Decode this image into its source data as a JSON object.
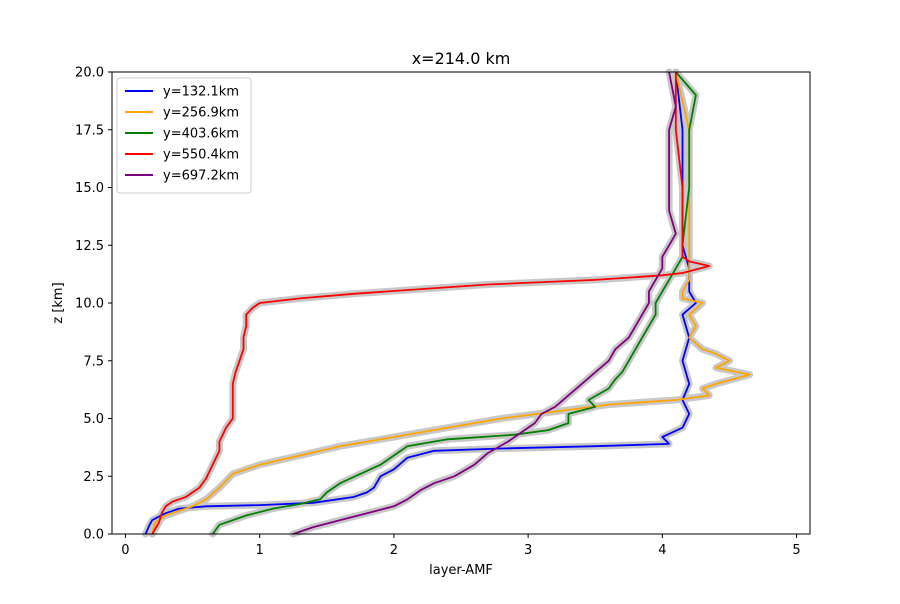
{
  "chart_data": {
    "type": "line",
    "title": "x=214.0 km",
    "xlabel": "layer-AMF",
    "ylabel": "z [km]",
    "xlim": [
      -0.1,
      5.1
    ],
    "ylim": [
      0,
      20
    ],
    "xticks": [
      0,
      1,
      2,
      3,
      4,
      5
    ],
    "xtick_labels": [
      "0",
      "1",
      "2",
      "3",
      "4",
      "5"
    ],
    "yticks": [
      0,
      2.5,
      5,
      7.5,
      10,
      12.5,
      15,
      17.5,
      20
    ],
    "ytick_labels": [
      "0.0",
      "2.5",
      "5.0",
      "7.5",
      "10.0",
      "12.5",
      "15.0",
      "17.5",
      "20.0"
    ],
    "grid": false,
    "legend_position": "upper-left",
    "uncertainty_band_color": "#c8c8c8",
    "series": [
      {
        "name": "y=132.1km",
        "color": "#0000ff",
        "points": [
          [
            0.15,
            0
          ],
          [
            0.18,
            0.4
          ],
          [
            0.2,
            0.6
          ],
          [
            0.3,
            0.9
          ],
          [
            0.4,
            1.1
          ],
          [
            0.6,
            1.2
          ],
          [
            1.0,
            1.25
          ],
          [
            1.4,
            1.35
          ],
          [
            1.7,
            1.6
          ],
          [
            1.8,
            1.8
          ],
          [
            1.85,
            2.0
          ],
          [
            1.9,
            2.5
          ],
          [
            2.0,
            2.8
          ],
          [
            2.1,
            3.3
          ],
          [
            2.3,
            3.6
          ],
          [
            2.8,
            3.7
          ],
          [
            3.5,
            3.8
          ],
          [
            4.05,
            3.9
          ],
          [
            4.0,
            4.2
          ],
          [
            4.15,
            4.6
          ],
          [
            4.2,
            5.2
          ],
          [
            4.15,
            5.8
          ],
          [
            4.2,
            6.5
          ],
          [
            4.15,
            7.5
          ],
          [
            4.2,
            8.5
          ],
          [
            4.15,
            9.5
          ],
          [
            4.25,
            10.0
          ],
          [
            4.2,
            10.5
          ],
          [
            4.2,
            11.5
          ],
          [
            4.15,
            12.5
          ],
          [
            4.15,
            15.0
          ],
          [
            4.15,
            17.5
          ],
          [
            4.1,
            20.0
          ]
        ]
      },
      {
        "name": "y=256.9km",
        "color": "#ffa500",
        "points": [
          [
            0.2,
            0
          ],
          [
            0.22,
            0.5
          ],
          [
            0.3,
            0.8
          ],
          [
            0.5,
            1.2
          ],
          [
            0.6,
            1.5
          ],
          [
            0.7,
            2.0
          ],
          [
            0.8,
            2.6
          ],
          [
            1.0,
            3.0
          ],
          [
            1.3,
            3.4
          ],
          [
            1.6,
            3.8
          ],
          [
            2.0,
            4.2
          ],
          [
            2.4,
            4.6
          ],
          [
            2.8,
            5.0
          ],
          [
            3.2,
            5.3
          ],
          [
            3.6,
            5.6
          ],
          [
            4.1,
            5.8
          ],
          [
            4.35,
            6.0
          ],
          [
            4.3,
            6.3
          ],
          [
            4.4,
            6.5
          ],
          [
            4.65,
            6.9
          ],
          [
            4.4,
            7.2
          ],
          [
            4.5,
            7.5
          ],
          [
            4.4,
            7.8
          ],
          [
            4.3,
            8.0
          ],
          [
            4.2,
            8.5
          ],
          [
            4.25,
            9.0
          ],
          [
            4.2,
            9.5
          ],
          [
            4.3,
            10.0
          ],
          [
            4.15,
            10.2
          ],
          [
            4.15,
            10.5
          ],
          [
            4.2,
            11.0
          ],
          [
            4.2,
            12.5
          ],
          [
            4.2,
            15.0
          ],
          [
            4.2,
            17.5
          ],
          [
            4.1,
            20.0
          ]
        ]
      },
      {
        "name": "y=403.6km",
        "color": "#008000",
        "points": [
          [
            0.65,
            0
          ],
          [
            0.7,
            0.4
          ],
          [
            0.9,
            0.8
          ],
          [
            1.1,
            1.1
          ],
          [
            1.3,
            1.3
          ],
          [
            1.45,
            1.5
          ],
          [
            1.5,
            1.8
          ],
          [
            1.6,
            2.2
          ],
          [
            1.75,
            2.6
          ],
          [
            1.9,
            3.0
          ],
          [
            2.0,
            3.4
          ],
          [
            2.1,
            3.8
          ],
          [
            2.4,
            4.1
          ],
          [
            2.9,
            4.3
          ],
          [
            3.15,
            4.5
          ],
          [
            3.3,
            4.8
          ],
          [
            3.3,
            5.2
          ],
          [
            3.5,
            5.5
          ],
          [
            3.45,
            5.8
          ],
          [
            3.6,
            6.3
          ],
          [
            3.65,
            6.7
          ],
          [
            3.7,
            7.0
          ],
          [
            3.75,
            7.5
          ],
          [
            3.8,
            8.0
          ],
          [
            3.85,
            8.5
          ],
          [
            3.9,
            9.0
          ],
          [
            3.95,
            9.5
          ],
          [
            3.95,
            10.0
          ],
          [
            4.0,
            10.5
          ],
          [
            4.05,
            11.0
          ],
          [
            4.1,
            11.5
          ],
          [
            4.15,
            12.0
          ],
          [
            4.15,
            12.5
          ],
          [
            4.2,
            15.0
          ],
          [
            4.2,
            17.5
          ],
          [
            4.25,
            19.0
          ],
          [
            4.1,
            20.0
          ]
        ]
      },
      {
        "name": "y=550.4km",
        "color": "#ff0000",
        "points": [
          [
            0.2,
            0
          ],
          [
            0.25,
            0.5
          ],
          [
            0.27,
            0.9
          ],
          [
            0.3,
            1.2
          ],
          [
            0.35,
            1.4
          ],
          [
            0.45,
            1.6
          ],
          [
            0.5,
            1.8
          ],
          [
            0.55,
            2.0
          ],
          [
            0.6,
            2.4
          ],
          [
            0.65,
            3.0
          ],
          [
            0.7,
            3.6
          ],
          [
            0.7,
            4.0
          ],
          [
            0.75,
            4.6
          ],
          [
            0.8,
            5.0
          ],
          [
            0.8,
            5.5
          ],
          [
            0.8,
            6.0
          ],
          [
            0.8,
            6.5
          ],
          [
            0.82,
            7.0
          ],
          [
            0.85,
            7.5
          ],
          [
            0.88,
            8.0
          ],
          [
            0.88,
            8.5
          ],
          [
            0.9,
            9.0
          ],
          [
            0.9,
            9.5
          ],
          [
            0.95,
            9.8
          ],
          [
            1.0,
            10.0
          ],
          [
            1.3,
            10.2
          ],
          [
            1.7,
            10.4
          ],
          [
            2.2,
            10.6
          ],
          [
            2.7,
            10.8
          ],
          [
            3.5,
            11.0
          ],
          [
            4.0,
            11.2
          ],
          [
            4.15,
            11.3
          ],
          [
            4.35,
            11.6
          ],
          [
            4.2,
            11.8
          ],
          [
            4.15,
            12.0
          ],
          [
            4.15,
            12.5
          ],
          [
            4.15,
            15.0
          ],
          [
            4.1,
            17.5
          ],
          [
            4.1,
            20.0
          ]
        ]
      },
      {
        "name": "y=697.2km",
        "color": "#800080",
        "points": [
          [
            1.25,
            0
          ],
          [
            1.4,
            0.3
          ],
          [
            1.6,
            0.6
          ],
          [
            1.8,
            0.9
          ],
          [
            2.0,
            1.2
          ],
          [
            2.1,
            1.5
          ],
          [
            2.2,
            1.9
          ],
          [
            2.3,
            2.2
          ],
          [
            2.45,
            2.5
          ],
          [
            2.6,
            3.0
          ],
          [
            2.7,
            3.5
          ],
          [
            2.85,
            4.0
          ],
          [
            2.95,
            4.4
          ],
          [
            3.05,
            4.8
          ],
          [
            3.1,
            5.2
          ],
          [
            3.2,
            5.5
          ],
          [
            3.3,
            6.0
          ],
          [
            3.4,
            6.5
          ],
          [
            3.5,
            7.0
          ],
          [
            3.6,
            7.5
          ],
          [
            3.65,
            8.0
          ],
          [
            3.75,
            8.5
          ],
          [
            3.8,
            9.0
          ],
          [
            3.85,
            9.5
          ],
          [
            3.9,
            10.0
          ],
          [
            3.9,
            10.5
          ],
          [
            3.95,
            11.0
          ],
          [
            4.0,
            11.5
          ],
          [
            4.0,
            12.0
          ],
          [
            4.05,
            12.5
          ],
          [
            4.1,
            13.0
          ],
          [
            4.05,
            14.0
          ],
          [
            4.05,
            15.0
          ],
          [
            4.05,
            16.0
          ],
          [
            4.05,
            17.5
          ],
          [
            4.1,
            18.5
          ],
          [
            4.05,
            20.0
          ]
        ]
      }
    ]
  }
}
